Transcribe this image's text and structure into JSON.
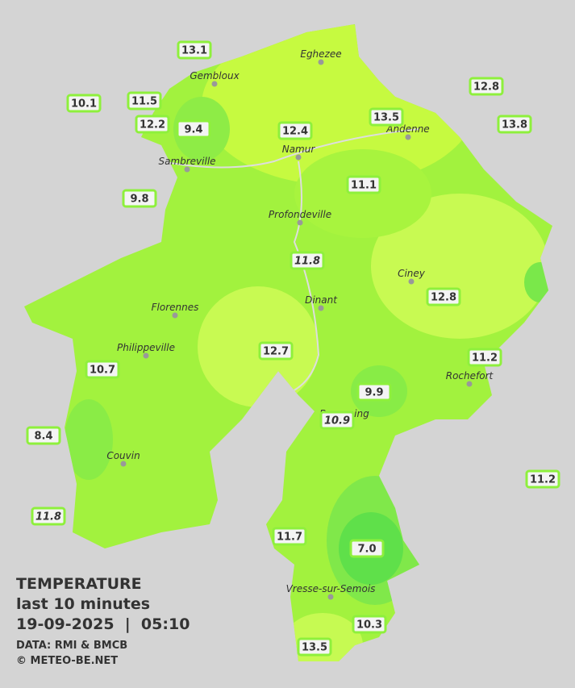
{
  "header": {
    "title": "TEMPERATURE",
    "subtitle": "last 10 minutes",
    "datetime": "19-09-2025  |  05:10",
    "source": "DATA: RMI & BMCB",
    "credit": "© METEO-BE.NET"
  },
  "towns": [
    "Eghezee",
    "Gembloux",
    "Namur",
    "Andenne",
    "Sambreville",
    "Profondeville",
    "Ciney",
    "Florennes",
    "Dinant",
    "Philippeville",
    "Rochefort",
    "Beauraing",
    "Couvin",
    "Vresse-sur-Semois"
  ],
  "stations": [
    "13.1",
    "10.1",
    "11.5",
    "12.2",
    "9.4",
    "12.4",
    "13.5",
    "12.8",
    "13.8",
    "9.8",
    "11.1",
    "11.8",
    "12.8",
    "12.7",
    "11.2",
    "10.7",
    "9.9",
    "10.9",
    "8.4",
    "11.2",
    "11.8",
    "11.7",
    "7.0",
    "10.3",
    "13.5"
  ]
}
